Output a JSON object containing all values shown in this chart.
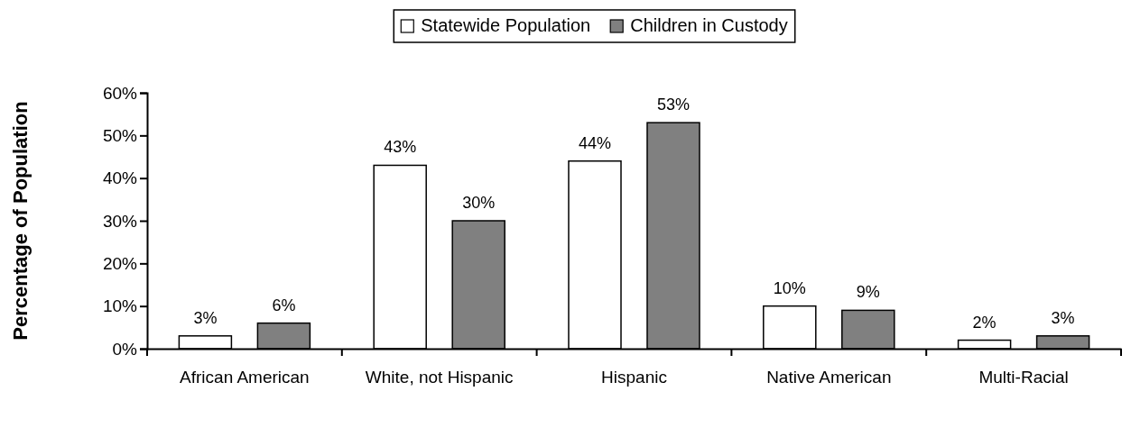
{
  "chart_data": {
    "type": "bar",
    "ylabel": "Percentage of Population",
    "categories": [
      "African American",
      "White, not Hispanic",
      "Hispanic",
      "Native American",
      "Multi-Racial"
    ],
    "series": [
      {
        "name": "Statewide Population",
        "color": "#ffffff",
        "values": [
          3,
          43,
          44,
          10,
          2
        ],
        "value_labels": [
          "3%",
          "43%",
          "44%",
          "10%",
          "2%"
        ]
      },
      {
        "name": "Children in Custody",
        "color": "#808080",
        "values": [
          6,
          30,
          53,
          9,
          3
        ],
        "value_labels": [
          "6%",
          "30%",
          "53%",
          "9%",
          "3%"
        ]
      }
    ],
    "ylim": [
      0,
      60
    ],
    "yticks": [
      {
        "value": 0,
        "label": "0%"
      },
      {
        "value": 10,
        "label": "10%"
      },
      {
        "value": 20,
        "label": "20%"
      },
      {
        "value": 30,
        "label": "30%"
      },
      {
        "value": 40,
        "label": "40%"
      },
      {
        "value": 50,
        "label": "50%"
      },
      {
        "value": 60,
        "label": "60%"
      }
    ],
    "grid": false,
    "legend": "top"
  }
}
